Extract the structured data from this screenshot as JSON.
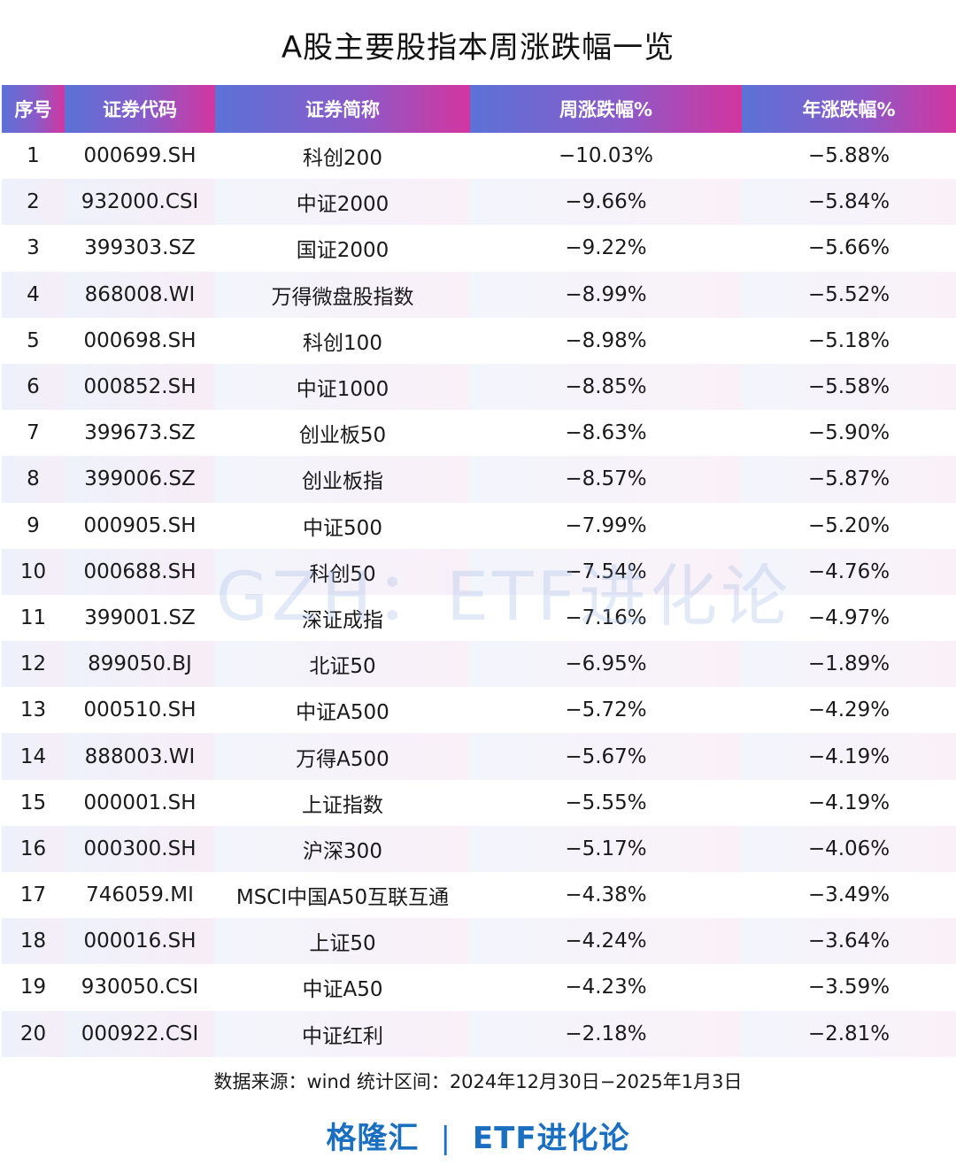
{
  "title": "A股主要股指本周涨跌幅一览",
  "table": {
    "headers": [
      "序号",
      "证券代码",
      "证券简称",
      "周涨跌幅%",
      "年涨跌幅%"
    ],
    "rows": [
      {
        "no": "1",
        "code": "000699.SH",
        "name": "科创200",
        "week": "−10.03%",
        "year": "−5.88%"
      },
      {
        "no": "2",
        "code": "932000.CSI",
        "name": "中证2000",
        "week": "−9.66%",
        "year": "−5.84%"
      },
      {
        "no": "3",
        "code": "399303.SZ",
        "name": "国证2000",
        "week": "−9.22%",
        "year": "−5.66%"
      },
      {
        "no": "4",
        "code": "868008.WI",
        "name": "万得微盘股指数",
        "week": "−8.99%",
        "year": "−5.52%"
      },
      {
        "no": "5",
        "code": "000698.SH",
        "name": "科创100",
        "week": "−8.98%",
        "year": "−5.18%"
      },
      {
        "no": "6",
        "code": "000852.SH",
        "name": "中证1000",
        "week": "−8.85%",
        "year": "−5.58%"
      },
      {
        "no": "7",
        "code": "399673.SZ",
        "name": "创业板50",
        "week": "−8.63%",
        "year": "−5.90%"
      },
      {
        "no": "8",
        "code": "399006.SZ",
        "name": "创业板指",
        "week": "−8.57%",
        "year": "−5.87%"
      },
      {
        "no": "9",
        "code": "000905.SH",
        "name": "中证500",
        "week": "−7.99%",
        "year": "−5.20%"
      },
      {
        "no": "10",
        "code": "000688.SH",
        "name": "科创50",
        "week": "−7.54%",
        "year": "−4.76%"
      },
      {
        "no": "11",
        "code": "399001.SZ",
        "name": "深证成指",
        "week": "−7.16%",
        "year": "−4.97%"
      },
      {
        "no": "12",
        "code": "899050.BJ",
        "name": "北证50",
        "week": "−6.95%",
        "year": "−1.89%"
      },
      {
        "no": "13",
        "code": "000510.SH",
        "name": "中证A500",
        "week": "−5.72%",
        "year": "−4.29%"
      },
      {
        "no": "14",
        "code": "888003.WI",
        "name": "万得A500",
        "week": "−5.67%",
        "year": "−4.19%"
      },
      {
        "no": "15",
        "code": "000001.SH",
        "name": "上证指数",
        "week": "−5.55%",
        "year": "−4.19%"
      },
      {
        "no": "16",
        "code": "000300.SH",
        "name": "沪深300",
        "week": "−5.17%",
        "year": "−4.06%"
      },
      {
        "no": "17",
        "code": "746059.MI",
        "name": "MSCI中国A50互联互通",
        "week": "−4.38%",
        "year": "−3.49%"
      },
      {
        "no": "18",
        "code": "000016.SH",
        "name": "上证50",
        "week": "−4.24%",
        "year": "−3.64%"
      },
      {
        "no": "19",
        "code": "930050.CSI",
        "name": "中证A50",
        "week": "−4.23%",
        "year": "−3.59%"
      },
      {
        "no": "20",
        "code": "000922.CSI",
        "name": "中证红利",
        "week": "−2.18%",
        "year": "−2.81%"
      }
    ]
  },
  "watermark": "GZH：ETF进化论",
  "source": "数据来源：wind 统计区间：2024年12月30日−2025年1月3日",
  "footer": {
    "brand": "格隆汇",
    "separator": "|",
    "account": "ETF进化论"
  },
  "colors": {
    "header_gradient_start": "#5b72d6",
    "header_gradient_end": "#d3359f",
    "footer_text": "#1a6fc0"
  }
}
